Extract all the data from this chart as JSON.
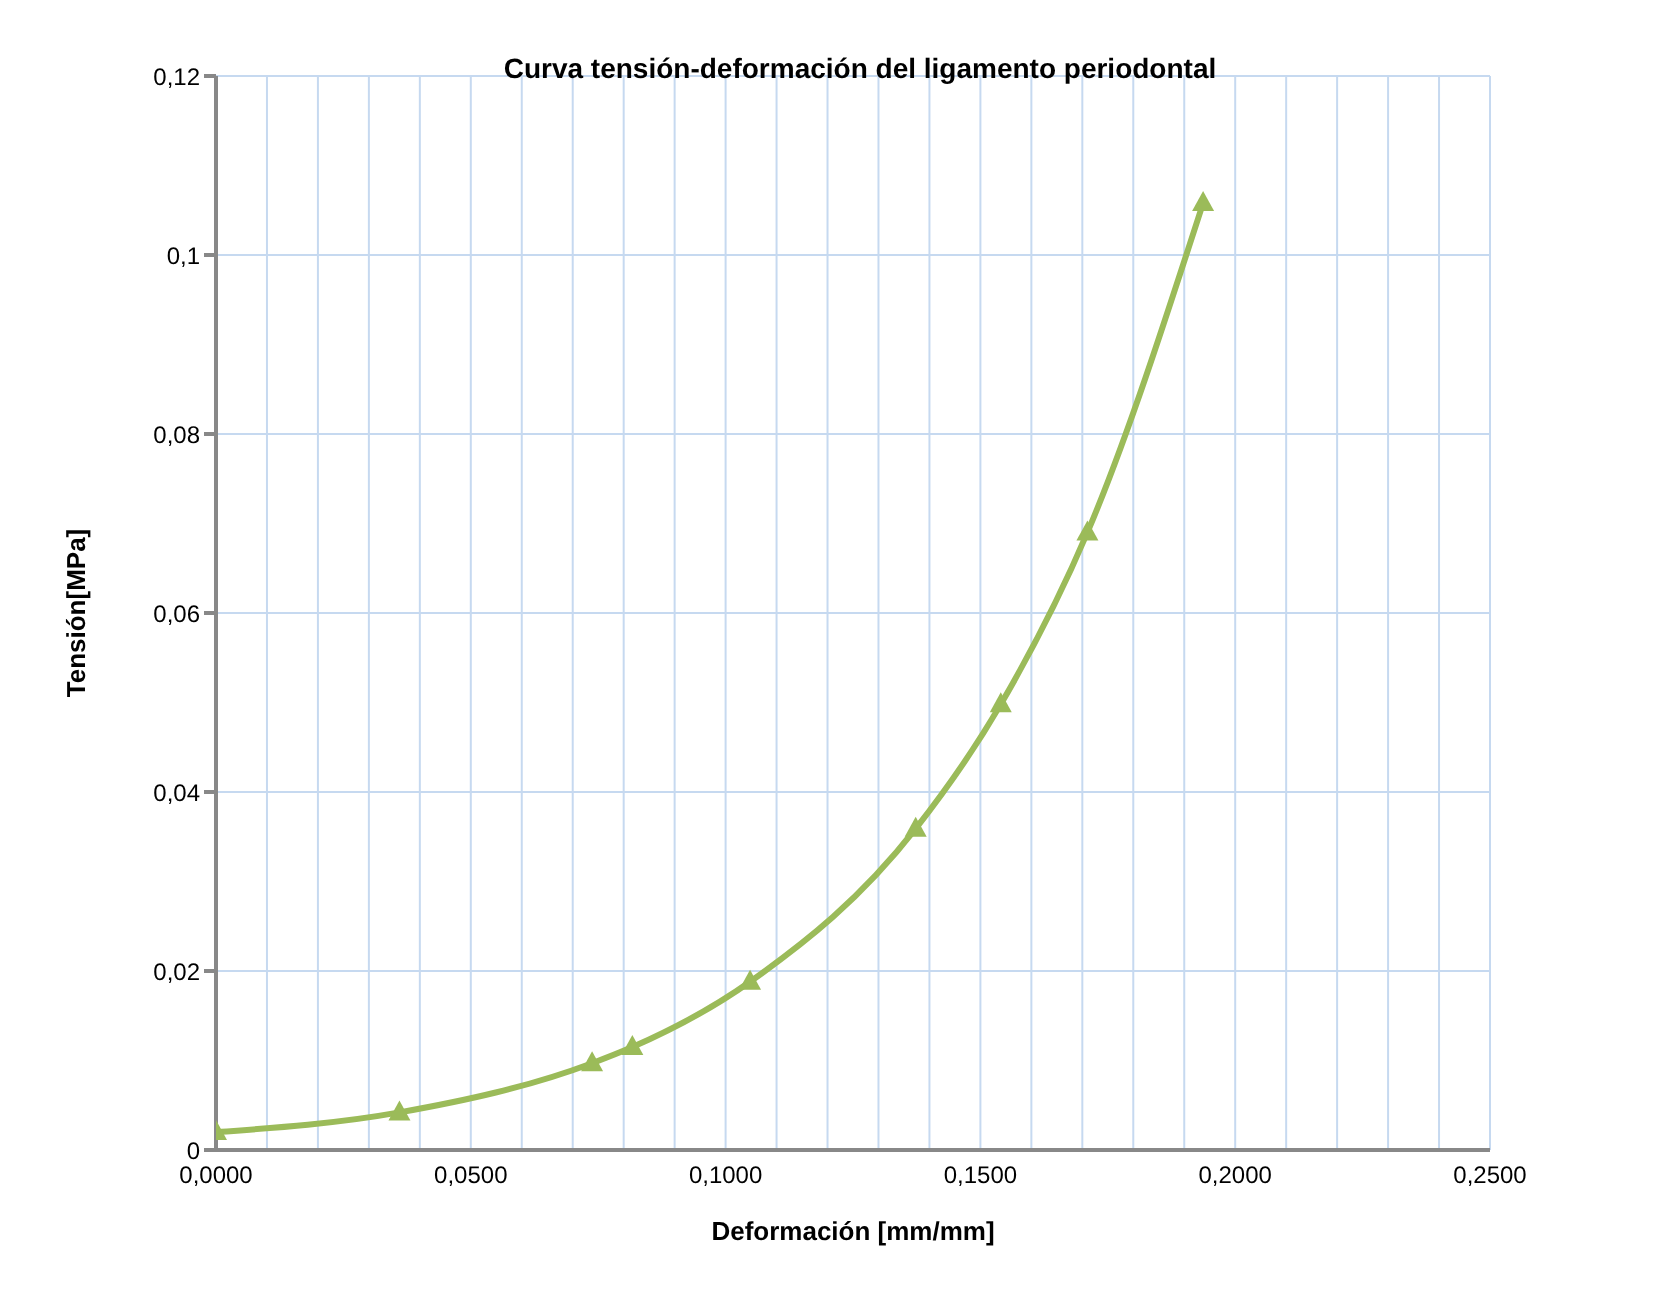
{
  "chart_data": {
    "type": "line",
    "title": "Curva tensión-deformación del ligamento periodontal",
    "xlabel": "Deformación [mm/mm]",
    "ylabel": "Tensión[MPa]",
    "x": [
      0.0,
      0.036,
      0.0738,
      0.0817,
      0.1048,
      0.1373,
      0.154,
      0.171,
      0.1937
    ],
    "series": [
      {
        "color": "#9bbb59",
        "values": [
          0.002,
          0.0042,
          0.0097,
          0.0115,
          0.0188,
          0.0359,
          0.0498,
          0.069,
          0.1058
        ]
      }
    ],
    "xlim": [
      0,
      0.25
    ],
    "xticks": [
      {
        "value": 0,
        "label": "0,0000"
      },
      {
        "value": 0.01,
        "label": null
      },
      {
        "value": 0.02,
        "label": null
      },
      {
        "value": 0.03,
        "label": null
      },
      {
        "value": 0.04,
        "label": null
      },
      {
        "value": 0.05,
        "label": "0,0500"
      },
      {
        "value": 0.06,
        "label": null
      },
      {
        "value": 0.07,
        "label": null
      },
      {
        "value": 0.08,
        "label": null
      },
      {
        "value": 0.09,
        "label": null
      },
      {
        "value": 0.1,
        "label": "0,1000"
      },
      {
        "value": 0.11,
        "label": null
      },
      {
        "value": 0.12,
        "label": null
      },
      {
        "value": 0.13,
        "label": null
      },
      {
        "value": 0.14,
        "label": null
      },
      {
        "value": 0.15,
        "label": "0,1500"
      },
      {
        "value": 0.16,
        "label": null
      },
      {
        "value": 0.17,
        "label": null
      },
      {
        "value": 0.18,
        "label": null
      },
      {
        "value": 0.19,
        "label": null
      },
      {
        "value": 0.2,
        "label": "0,2000"
      },
      {
        "value": 0.21,
        "label": null
      },
      {
        "value": 0.22,
        "label": null
      },
      {
        "value": 0.23,
        "label": null
      },
      {
        "value": 0.24,
        "label": null
      },
      {
        "value": 0.25,
        "label": "0,2500"
      }
    ],
    "ylim": [
      0,
      0.12
    ],
    "yticks": [
      0,
      {
        "value": 0.02,
        "label": "0,02"
      },
      {
        "value": 0.04,
        "label": "0,04"
      },
      {
        "value": 0.06,
        "label": "0,06"
      },
      {
        "value": 0.08,
        "label": "0,08"
      },
      {
        "value": 0.1,
        "label": "0,1"
      },
      {
        "value": 0.12,
        "label": "0,12"
      }
    ],
    "grid": true,
    "marker": "triangle",
    "line_style": "solid"
  }
}
